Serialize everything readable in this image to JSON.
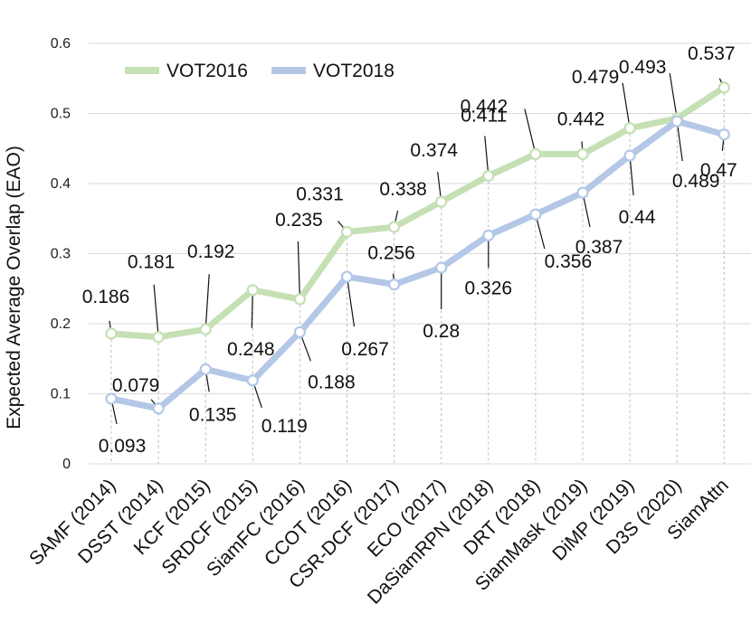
{
  "chart_data": {
    "type": "line",
    "title": "",
    "xlabel": "",
    "ylabel": "Expected Average Overlap (EAO)",
    "ylim": [
      0,
      0.6
    ],
    "yticks": [
      "0",
      "0.1",
      "0.2",
      "0.3",
      "0.4",
      "0.5",
      "0.6"
    ],
    "grid": true,
    "legend_position": "top-left",
    "categories": [
      "SAMF (2014)",
      "DSST (2014)",
      "KCF (2015)",
      "SRDCF (2015)",
      "SiamFC (2016)",
      "CCOT (2016)",
      "CSR-DCF (2017)",
      "ECO (2017)",
      "DaSiamRPN (2018)",
      "DRT (2018)",
      "SiamMask (2019)",
      "DiMP (2019)",
      "D3S (2020)",
      "SiamAttn"
    ],
    "series": [
      {
        "name": "VOT2016",
        "color": "#c5e0b4",
        "values": [
          0.186,
          0.181,
          0.192,
          0.248,
          0.235,
          0.331,
          0.338,
          0.374,
          0.411,
          0.442,
          0.442,
          0.479,
          0.493,
          0.537
        ],
        "labels": [
          "0.186",
          "0.181",
          "0.192",
          "0.248",
          "0.235",
          "0.331",
          "0.338",
          "0.374",
          "0.411",
          "0.442",
          "0.442",
          "0.479",
          "0.493",
          "0.537"
        ]
      },
      {
        "name": "VOT2018",
        "color": "#b4c7e7",
        "values": [
          0.093,
          0.079,
          0.135,
          0.119,
          0.188,
          0.267,
          0.256,
          0.28,
          0.326,
          0.356,
          0.387,
          0.44,
          0.489,
          0.47
        ],
        "labels": [
          "0.093",
          "0.079",
          "0.135",
          "0.119",
          "0.188",
          "0.267",
          "0.256",
          "0.28",
          "0.326",
          "0.356",
          "0.387",
          "0.44",
          "0.489",
          "0.47"
        ]
      }
    ]
  }
}
